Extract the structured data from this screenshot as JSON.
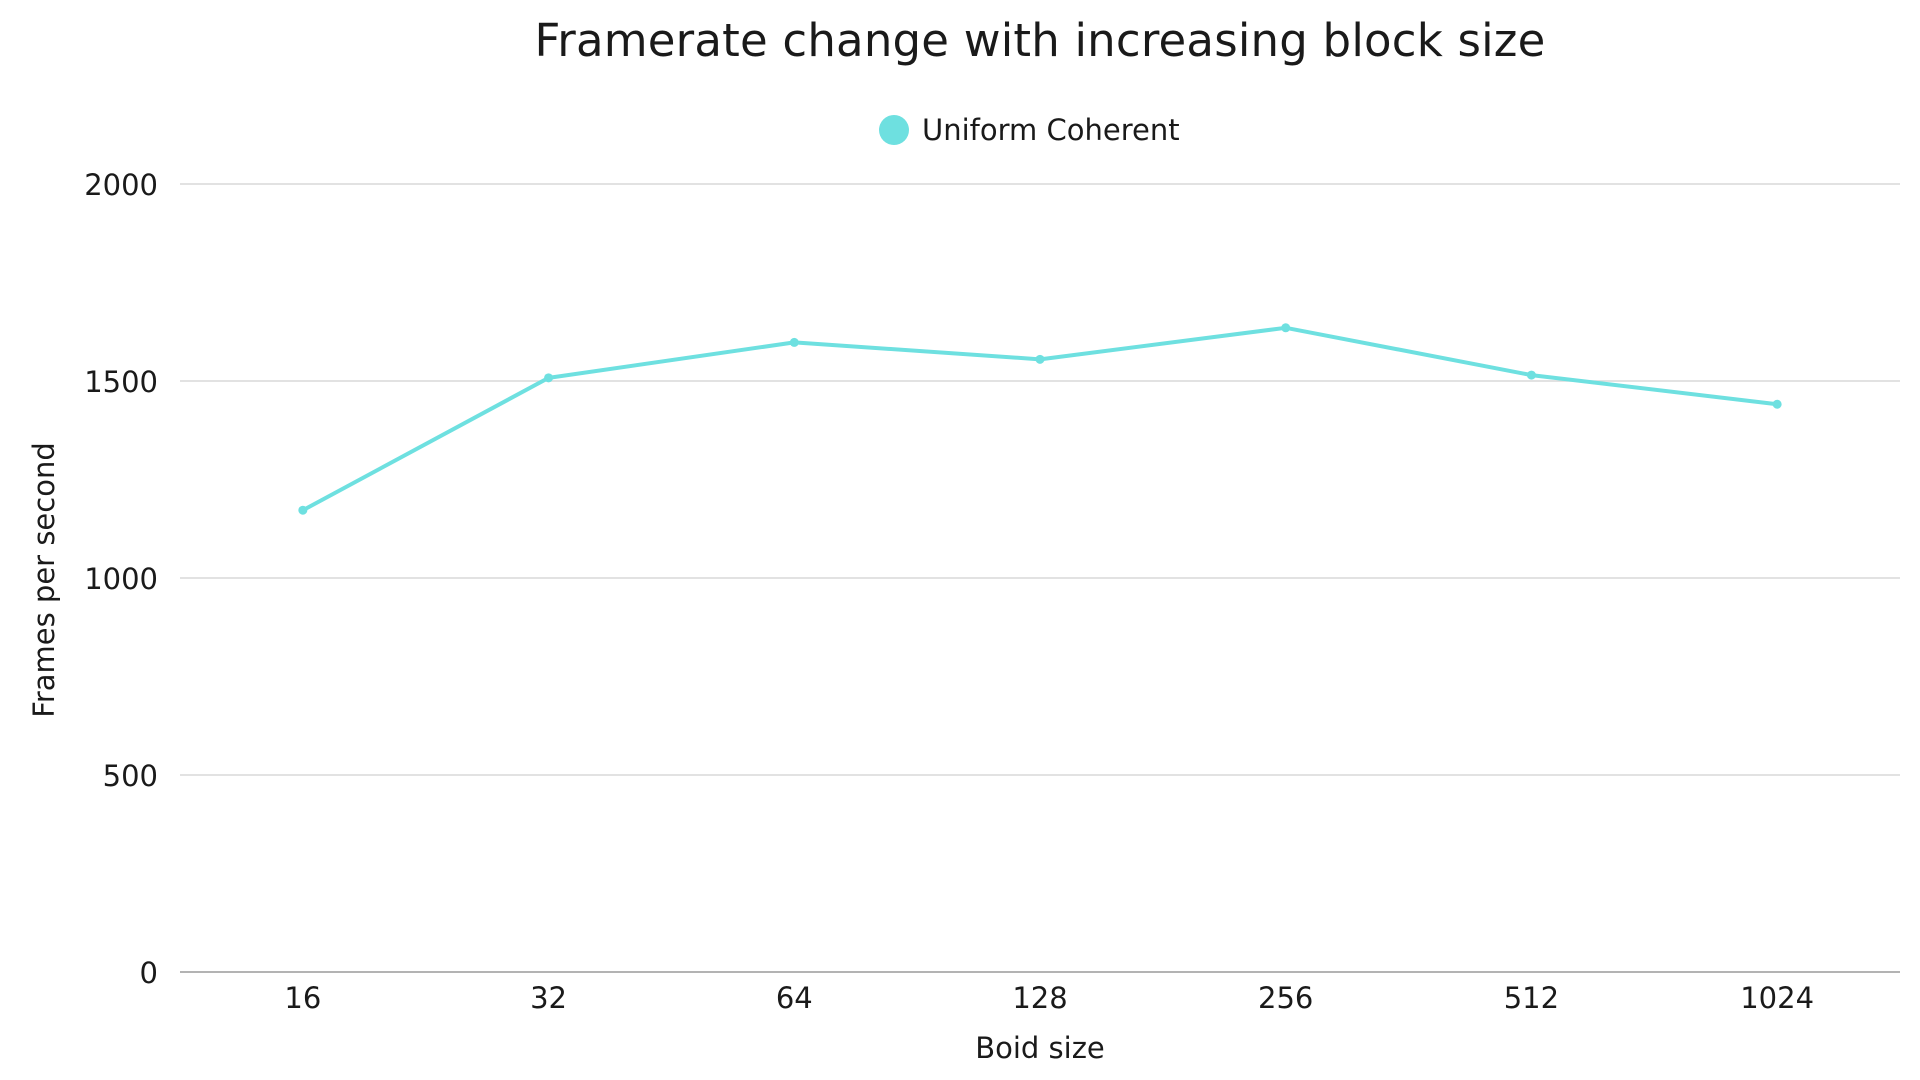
{
  "chart_data": {
    "type": "line",
    "title": "Framerate change with increasing block size",
    "xlabel": "Boid size",
    "ylabel": "Frames per second",
    "categories": [
      "16",
      "32",
      "64",
      "128",
      "256",
      "512",
      "1024"
    ],
    "series": [
      {
        "name": "Uniform Coherent",
        "color": "#6ee0e0",
        "values": [
          1172,
          1508,
          1598,
          1555,
          1635,
          1515,
          1441
        ]
      }
    ],
    "ylim": [
      0,
      2000
    ],
    "yticks": [
      0,
      500,
      1000,
      1500,
      2000
    ],
    "grid": true,
    "legend_position": "top-center",
    "colors": {
      "grid": "#d9d9d9",
      "axis": "#9a9a9a",
      "text": "#1a1a1a"
    }
  }
}
